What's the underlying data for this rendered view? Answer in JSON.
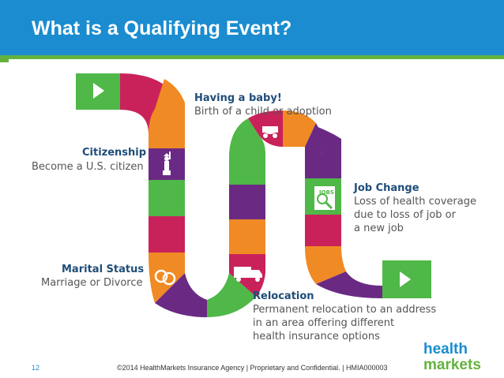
{
  "header": {
    "title": "What is a Qualifying Event?"
  },
  "events": {
    "baby": {
      "title": "Having a baby!",
      "desc": [
        "Birth of a child or adoption"
      ]
    },
    "citizenship": {
      "title": "Citizenship",
      "desc": [
        "Become a U.S. citizen"
      ]
    },
    "job": {
      "title": "Job Change",
      "desc": [
        "Loss of health coverage",
        "due to loss of job or",
        "a new job"
      ]
    },
    "marital": {
      "title": "Marital Status",
      "desc": [
        "Marriage or Divorce"
      ]
    },
    "relocation": {
      "title": "Relocation",
      "desc": [
        "Permanent relocation to an address",
        "in an area offering different",
        "health insurance options"
      ]
    }
  },
  "icons": {
    "start": "play-arrow-icon",
    "finish": "play-arrow-icon",
    "baby": "baby-carriage-icon",
    "citizenship": "statue-of-liberty-icon",
    "job": "job-search-icon",
    "marital": "wedding-rings-icon",
    "relocation": "moving-truck-icon"
  },
  "icon_text": {
    "jobs_sign": "JOBS"
  },
  "colors": {
    "header": "#1a8ccf",
    "accent_green": "#64b23e",
    "path_palette": [
      "#4fb848",
      "#c9225a",
      "#f08a24",
      "#6a2a83"
    ]
  },
  "footer": {
    "page_number": "12",
    "copyright": "©2014 HealthMarkets Insurance Agency  |   Proprietary and Confidential.  |  HMIA000003"
  },
  "logo": {
    "line1": "health",
    "line2": "markets"
  }
}
